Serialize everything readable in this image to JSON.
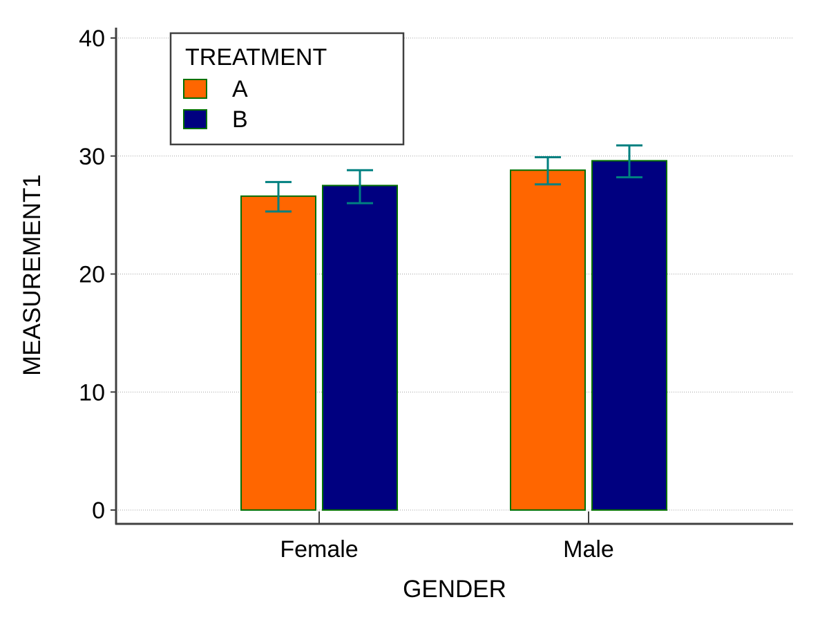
{
  "chart_data": {
    "type": "bar",
    "title": "",
    "xlabel": "GENDER",
    "ylabel": "MEASUREMENT1",
    "categories": [
      "Female",
      "Male"
    ],
    "series": [
      {
        "name": "A",
        "values": [
          26.6,
          28.8
        ],
        "error_low": [
          25.3,
          27.6
        ],
        "error_high": [
          27.8,
          29.9
        ],
        "color": "#ff6600"
      },
      {
        "name": "B",
        "values": [
          27.5,
          29.6
        ],
        "error_low": [
          26.0,
          28.2
        ],
        "error_high": [
          28.8,
          30.9
        ],
        "color": "#000080"
      }
    ],
    "ylim": [
      0,
      40
    ],
    "yticks": [
      0,
      10,
      20,
      30,
      40
    ],
    "grid": true,
    "legend": {
      "title": "TREATMENT",
      "placement": "top-left"
    },
    "colors": {
      "bar_outline": "#007000",
      "error_bar": "#008080",
      "axis": "#404040",
      "grid": "#a0a0a0"
    }
  }
}
